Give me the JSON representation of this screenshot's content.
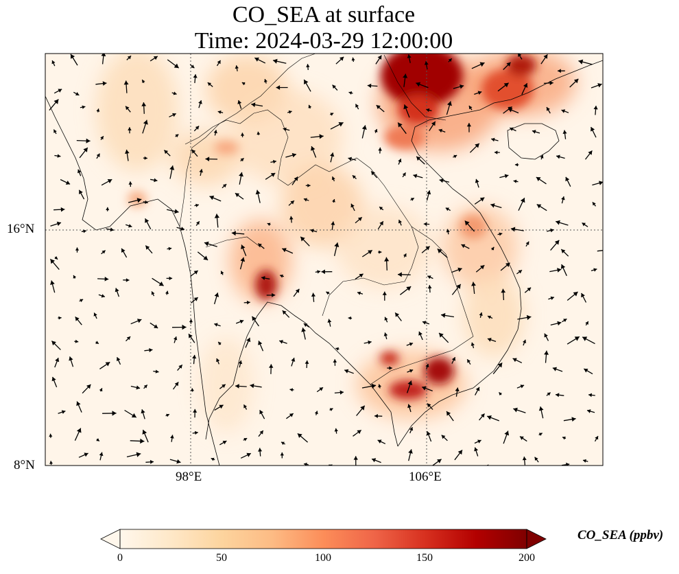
{
  "title": "CO_SEA at surface",
  "subtitle": "Time: 2024-03-29 12:00:00",
  "axes": {
    "lat_ticks": [
      {
        "value": 16,
        "label": "16°N"
      },
      {
        "value": 8,
        "label": "8°N"
      }
    ],
    "lon_ticks": [
      {
        "value": 98,
        "label": "98°E"
      },
      {
        "value": 106,
        "label": "106°E"
      }
    ],
    "gridlines": "dotted"
  },
  "colorbar": {
    "label": "CO_SEA (ppbv)",
    "ticks": [
      "0",
      "50",
      "100",
      "150",
      "200"
    ],
    "min": 0,
    "max": 200,
    "colormap": "OrRd",
    "extend": "both",
    "colors": [
      "#fff7ec",
      "#fee8c8",
      "#fdd49e",
      "#fdbb84",
      "#fc8d59",
      "#ef6548",
      "#d7301f",
      "#b30000",
      "#7f0000"
    ]
  }
}
